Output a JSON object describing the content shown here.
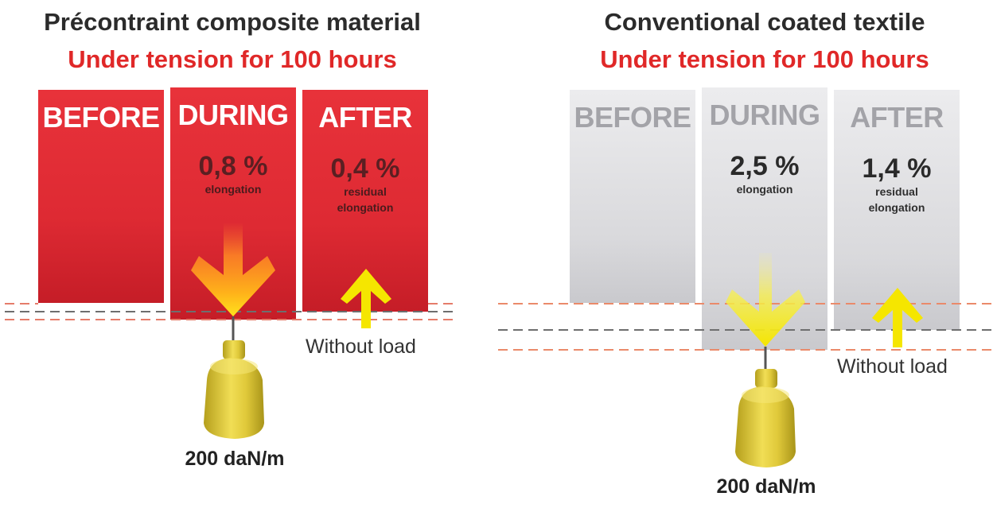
{
  "left": {
    "title": "Précontraint composite material",
    "subtitle": "Under tension for 100 hours",
    "panels": [
      {
        "label": "BEFORE"
      },
      {
        "label": "DURING",
        "value": "0,8 %",
        "caption_1": "elongation"
      },
      {
        "label": "AFTER",
        "value": "0,4 %",
        "caption_1": "residual",
        "caption_2": "elongation"
      }
    ],
    "without_load": "Without load",
    "load": "200 daN/m"
  },
  "right": {
    "title": "Conventional coated textile",
    "subtitle": "Under tension for 100 hours",
    "panels": [
      {
        "label": "BEFORE"
      },
      {
        "label": "DURING",
        "value": "2,5 %",
        "caption_1": "elongation"
      },
      {
        "label": "AFTER",
        "value": "1,4 %",
        "caption_1": "residual",
        "caption_2": "elongation"
      }
    ],
    "without_load": "Without load",
    "load": "200 daN/m"
  },
  "colors": {
    "accent_red": "#e02828",
    "panel_red": "#e2323a",
    "panel_grey": "#dcdcdf",
    "arrow_yellow": "#f5e500",
    "arrow_orange": "#ff9a1a",
    "weight_gold": "#d9c432"
  },
  "icons": [
    "down-arrow-icon",
    "up-arrow-icon",
    "weight-icon"
  ]
}
